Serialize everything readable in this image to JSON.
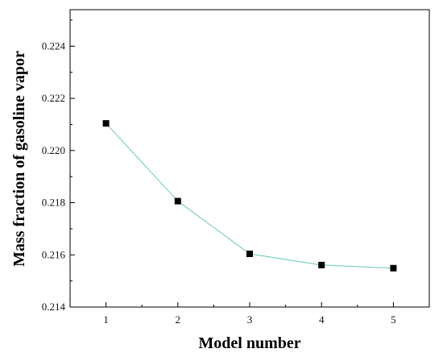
{
  "chart_data": {
    "type": "line",
    "title": "",
    "xlabel": "Model number",
    "ylabel": "Mass fraction of gasoline vapor",
    "x": [
      1,
      2,
      3,
      4,
      5
    ],
    "series": [
      {
        "values": [
          0.22104,
          0.21806,
          0.21604,
          0.21561,
          0.21549
        ]
      }
    ],
    "xlim": [
      0.5,
      5.5
    ],
    "ylim": [
      0.214,
      0.2254
    ],
    "xticks": [
      "1",
      "2",
      "3",
      "4",
      "5"
    ],
    "yticks": [
      "0.214",
      "0.216",
      "0.218",
      "0.220",
      "0.222",
      "0.224"
    ],
    "ytick_values": [
      0.214,
      0.216,
      0.218,
      0.22,
      0.222,
      0.224
    ],
    "grid": false,
    "legend": "none",
    "colors": {
      "line": "#7ecfc4",
      "marker": "#000000",
      "axis": "#000000"
    }
  }
}
